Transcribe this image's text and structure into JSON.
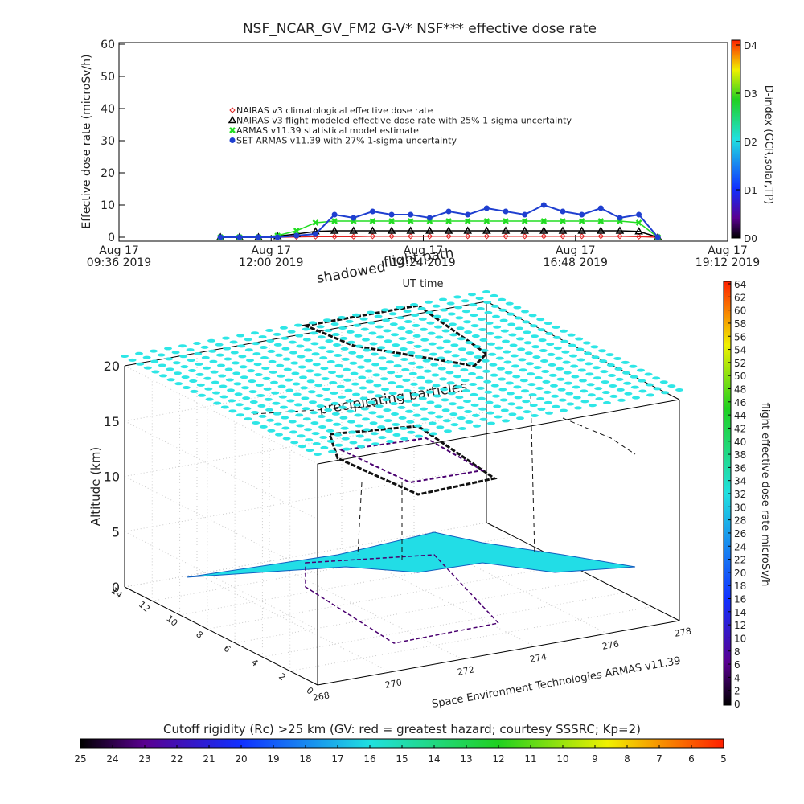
{
  "chart_data": [
    {
      "type": "scatter",
      "title": "NSF_NCAR_GV_FM2 G-V* NSF*** effective dose rate",
      "ylabel": "Effective dose rate (microSv/h)",
      "xlabel": "UT time",
      "xlim": [
        9.6,
        19.2
      ],
      "xticks": [
        {
          "value": 9.6,
          "label": [
            "Aug 17",
            "09:36 2019"
          ]
        },
        {
          "value": 12,
          "label": [
            "Aug 17",
            "12:00 2019"
          ]
        },
        {
          "value": 14.4,
          "label": [
            "Aug 17",
            "14:24 2019"
          ]
        },
        {
          "value": 16.8,
          "label": [
            "Aug 17",
            "16:48 2019"
          ]
        },
        {
          "value": 19.2,
          "label": [
            "Aug 17",
            "19:12 2019"
          ]
        }
      ],
      "ylim": [
        0,
        60
      ],
      "yticks": [
        0,
        10,
        20,
        30,
        40,
        50,
        60
      ],
      "x": [
        11.2,
        11.5,
        11.8,
        12.1,
        12.4,
        12.7,
        13.0,
        13.3,
        13.6,
        13.9,
        14.2,
        14.5,
        14.8,
        15.1,
        15.4,
        15.7,
        16.0,
        16.3,
        16.6,
        16.9,
        17.2,
        17.5,
        17.8,
        18.1
      ],
      "series": [
        {
          "name": "NAIRAS v3 climatological effective dose rate",
          "color": "#e02020",
          "marker": "diamond",
          "values": [
            0,
            0,
            0,
            0,
            0.1,
            0.2,
            0.2,
            0.2,
            0.3,
            0.3,
            0.3,
            0.3,
            0.3,
            0.3,
            0.3,
            0.3,
            0.3,
            0.3,
            0.3,
            0.3,
            0.3,
            0.3,
            0.2,
            0
          ]
        },
        {
          "name": "NAIRAS v3 flight modeled effective dose rate with 25% 1-sigma uncertainty",
          "color": "#000000",
          "marker": "triangle",
          "values": [
            0,
            0,
            0,
            0.3,
            1,
            1.8,
            2,
            2,
            2,
            2,
            2,
            2,
            2,
            2,
            2,
            2,
            2,
            2,
            2,
            2,
            2,
            2,
            1.8,
            0
          ]
        },
        {
          "name": "ARMAS v11.39 statistical model estimate",
          "color": "#22dd22",
          "marker": "cross",
          "values": [
            0,
            0,
            0,
            0.5,
            2,
            4.5,
            5,
            5,
            5,
            5,
            5,
            5,
            5,
            5,
            5,
            5,
            5,
            5,
            5,
            5,
            5,
            5,
            4.5,
            0
          ]
        },
        {
          "name": "SET ARMAS v11.39 with 27% 1-sigma uncertainty",
          "color": "#1f3fd0",
          "marker": "circle",
          "values": [
            0,
            0,
            0,
            0,
            0.5,
            1,
            7,
            6,
            8,
            7,
            7,
            6,
            8,
            7,
            9,
            8,
            7,
            10,
            8,
            7,
            9,
            6,
            7,
            0
          ]
        }
      ],
      "colorbar": {
        "label": "D-index (GCR,solar,TP)",
        "ylim": [
          0,
          4
        ],
        "ticks": [
          {
            "value": 0,
            "label": "D0"
          },
          {
            "value": 1,
            "label": "D1"
          },
          {
            "value": 2,
            "label": "D2"
          },
          {
            "value": 3,
            "label": "D3"
          },
          {
            "value": 4,
            "label": "D4"
          }
        ]
      }
    },
    {
      "type": "surface3d",
      "annotations": [
        "shadowed",
        "flight path",
        "precipitating particles"
      ],
      "zlabel": "Altitude (km)",
      "zlim": [
        0,
        20
      ],
      "zticks": [
        0,
        5,
        10,
        15,
        20
      ],
      "ylim": [
        0,
        14
      ],
      "yticks": [
        0,
        2,
        4,
        6,
        8,
        10,
        12,
        14
      ],
      "xlim": [
        268,
        278
      ],
      "xticks": [
        268,
        270,
        272,
        274,
        276,
        278
      ],
      "credit": "Space Environment Technologies ARMAS v11.39",
      "colorbar": {
        "label": "flight effective dose rate microSv/h",
        "ylim": [
          0,
          64
        ],
        "ticks": [
          0,
          2,
          4,
          6,
          8,
          10,
          12,
          14,
          16,
          18,
          20,
          22,
          24,
          26,
          28,
          30,
          32,
          34,
          36,
          38,
          40,
          42,
          44,
          46,
          48,
          50,
          52,
          54,
          56,
          58,
          60,
          62,
          64
        ]
      },
      "rigidity_bar": {
        "title": "Cutoff rigidity (Rc) >25 km (GV: red = greatest hazard; courtesy SSSRC; Kp=2)",
        "xlim": [
          25,
          5
        ],
        "ticks": [
          25,
          24,
          23,
          22,
          21,
          20,
          19,
          18,
          17,
          16,
          15,
          14,
          13,
          12,
          11,
          10,
          9,
          8,
          7,
          6,
          5
        ]
      }
    }
  ]
}
